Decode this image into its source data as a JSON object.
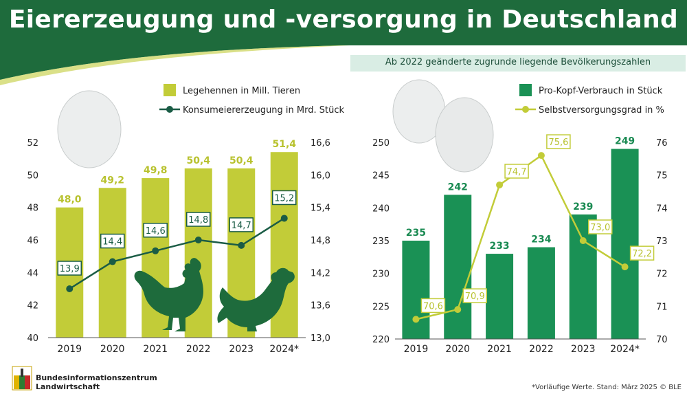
{
  "title": "Eiererzeugung und -versorgung in Deutschland",
  "subtitle": "Ab 2022 geänderte zugrunde liegende Bevölkerungszahlen",
  "footer": {
    "org_line1": "Bundesinformationszentrum",
    "org_line2": "Landwirtschaft",
    "note": "*Vorläufige Werte. Stand: März 2025 © BLE"
  },
  "colors": {
    "dark_green": "#1e6b3c",
    "bar_lime": "#c2cc38",
    "bar_green": "#1a9155",
    "line_dark": "#1a5c45",
    "line_lime": "#c2cc38",
    "label_lime": "#b8c22f",
    "label_green": "#1a8a52"
  },
  "icons": [
    "egg-icon",
    "rooster-icon",
    "hen-icon",
    "ble-logo-icon"
  ],
  "chart_data": [
    {
      "type": "bar",
      "categories": [
        "2019",
        "2020",
        "2021",
        "2022",
        "2023",
        "2024*"
      ],
      "series": [
        {
          "name": "Legehennen in Mill. Tieren",
          "type": "bar",
          "axis": "left",
          "values": [
            48.0,
            49.2,
            49.8,
            50.4,
            50.4,
            51.4
          ],
          "labels": [
            "48,0",
            "49,2",
            "49,8",
            "50,4",
            "50,4",
            "51,4"
          ]
        },
        {
          "name": "Konsumeiererzeugung in Mrd. Stück",
          "type": "line",
          "axis": "right",
          "values": [
            13.9,
            14.4,
            14.6,
            14.8,
            14.7,
            15.2
          ],
          "labels": [
            "13,9",
            "14,4",
            "14,6",
            "14,8",
            "14,7",
            "15,2"
          ]
        }
      ],
      "ylim_left": [
        40,
        52
      ],
      "yticks_left": [
        "40",
        "42",
        "44",
        "46",
        "48",
        "50",
        "52"
      ],
      "ylim_right": [
        13.0,
        16.6
      ],
      "yticks_right": [
        "13,0",
        "13,6",
        "14,2",
        "14,8",
        "15,4",
        "16,0",
        "16,6"
      ],
      "legend_position": "top-right"
    },
    {
      "type": "bar",
      "categories": [
        "2019",
        "2020",
        "2021",
        "2022",
        "2023",
        "2024*"
      ],
      "series": [
        {
          "name": "Pro-Kopf-Verbrauch in Stück",
          "type": "bar",
          "axis": "left",
          "values": [
            235,
            242,
            233,
            234,
            239,
            249
          ],
          "labels": [
            "235",
            "242",
            "233",
            "234",
            "239",
            "249"
          ]
        },
        {
          "name": "Selbstversorgungsgrad in %",
          "type": "line",
          "axis": "right",
          "values": [
            70.6,
            70.9,
            74.7,
            75.6,
            73.0,
            72.2
          ],
          "labels": [
            "70,6",
            "70,9",
            "74,7",
            "75,6",
            "73,0",
            "72,2"
          ]
        }
      ],
      "ylim_left": [
        220,
        250
      ],
      "yticks_left": [
        "220",
        "225",
        "230",
        "235",
        "240",
        "245",
        "250"
      ],
      "ylim_right": [
        70,
        76
      ],
      "yticks_right": [
        "70",
        "71",
        "72",
        "73",
        "74",
        "75",
        "76"
      ],
      "legend_position": "top-right"
    }
  ]
}
